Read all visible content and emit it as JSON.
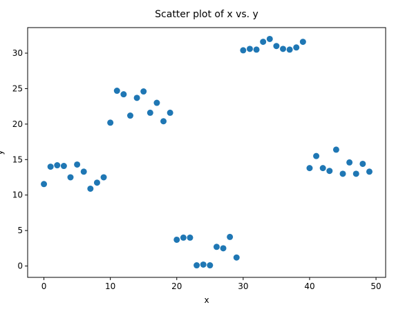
{
  "chart_data": {
    "type": "scatter",
    "title": "Scatter plot of x vs. y",
    "x_label": "x",
    "y_label": "y",
    "color": "#1f77b4",
    "x": [
      0,
      1,
      2,
      3,
      4,
      5,
      6,
      7,
      8,
      9,
      10,
      11,
      12,
      13,
      14,
      15,
      16,
      17,
      18,
      19,
      20,
      21,
      22,
      23,
      24,
      25,
      26,
      27,
      28,
      29,
      30,
      31,
      32,
      33,
      34,
      35,
      36,
      37,
      38,
      39,
      40,
      41,
      42,
      43,
      44,
      45,
      46,
      47,
      48,
      49
    ],
    "y": [
      11.55,
      14.0,
      14.2,
      14.1,
      12.5,
      14.3,
      13.3,
      10.9,
      11.75,
      12.5,
      20.2,
      24.7,
      24.2,
      21.2,
      23.7,
      24.6,
      21.6,
      23.0,
      20.4,
      21.6,
      3.7,
      4.0,
      4.0,
      0.1,
      0.2,
      0.1,
      2.7,
      2.5,
      4.1,
      1.2,
      30.4,
      30.6,
      30.5,
      31.6,
      32.0,
      31.0,
      30.6,
      30.5,
      30.8,
      31.6,
      13.8,
      15.5,
      13.8,
      13.4,
      16.4,
      13.0,
      14.6,
      13.0,
      14.4,
      13.3
    ],
    "xlim": [
      -2.45,
      51.45
    ],
    "ylim": [
      -1.6,
      33.6
    ],
    "xticks": [
      0,
      10,
      20,
      30,
      40,
      50
    ],
    "yticks": [
      0,
      5,
      10,
      15,
      20,
      25,
      30
    ]
  }
}
